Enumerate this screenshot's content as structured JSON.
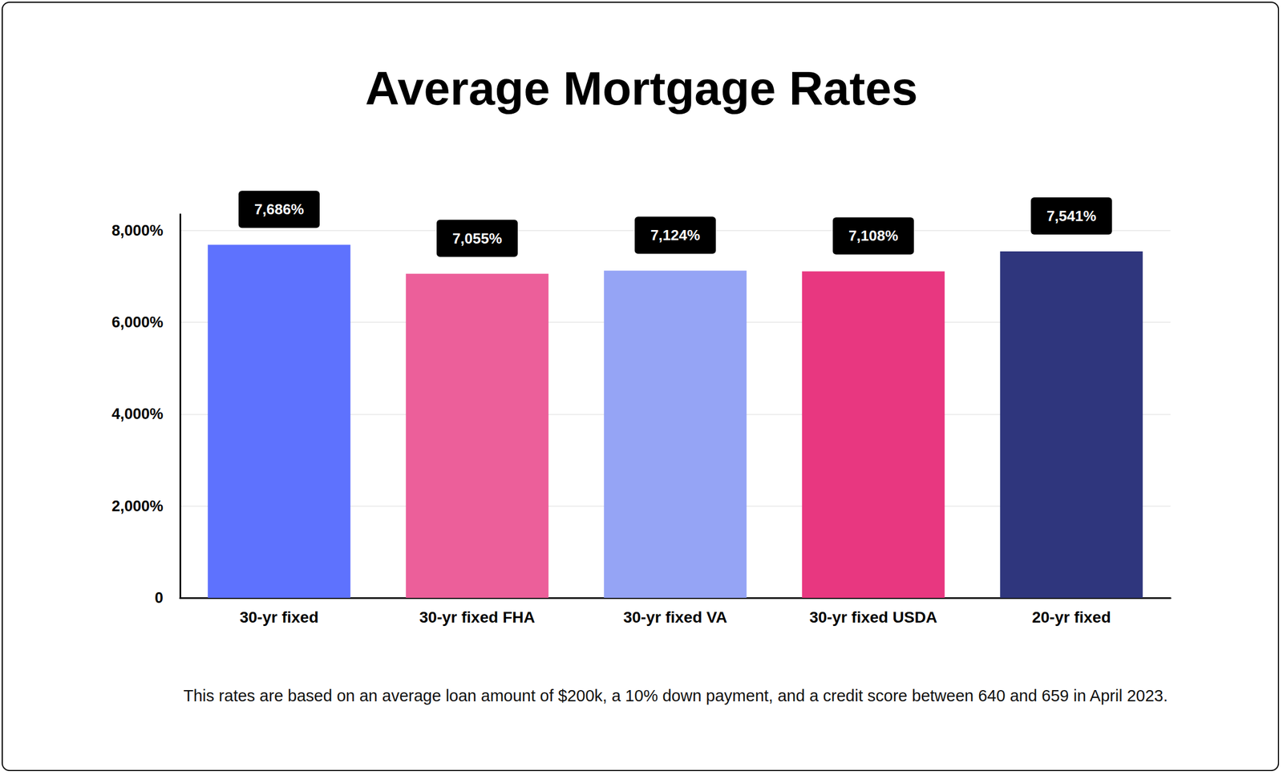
{
  "chart_data": {
    "type": "bar",
    "title": "Average Mortgage Rates",
    "annotations": [
      "This rates are based on an average loan amount of $200k, a 10% down payment, and a credit score between 640 and 659 in April 2023."
    ],
    "categories": [
      "30-yr fixed",
      "30-yr fixed FHA",
      "30-yr fixed VA",
      "30-yr fixed USDA",
      "20-yr fixed"
    ],
    "values": [
      7686,
      7055,
      7124,
      7108,
      7541
    ],
    "value_labels": [
      "7,686%",
      "7,055%",
      "7,124%",
      "7,108%",
      "7,541%"
    ],
    "colors": [
      "#5e72fe",
      "#ec5f9a",
      "#95a4f5",
      "#e83780",
      "#2f367d"
    ],
    "data_labels": true,
    "ylim": [
      0,
      8350
    ],
    "yticks": [
      0,
      {
        "value": 2000,
        "label": "2,000%"
      },
      {
        "value": 4000,
        "label": "4,000%"
      },
      {
        "value": 6000,
        "label": "6,000%"
      },
      {
        "value": 8000,
        "label": "8,000%"
      }
    ],
    "grid": true
  }
}
